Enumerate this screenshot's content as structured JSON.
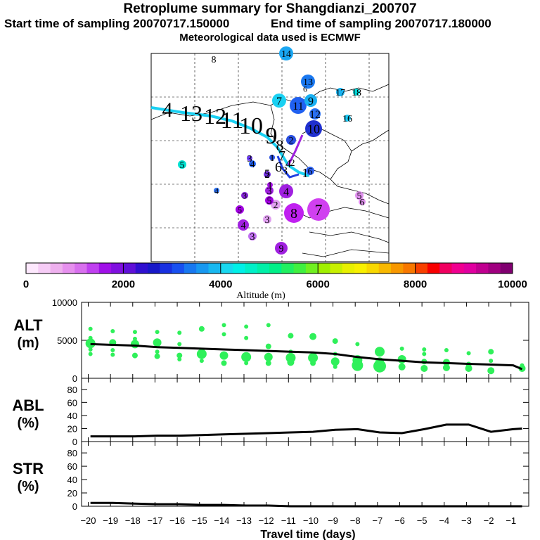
{
  "header": {
    "title": "Retroplume summary for Shangdianzi_200707",
    "start_time": "Start time of sampling 20070717.150000",
    "end_time": "End time of sampling 20070717.180000",
    "met_data": "Meteorological data used is ECMWF"
  },
  "map": {
    "plume_labels": [
      {
        "id": "p14",
        "text": "14",
        "color": "#19a6f2"
      },
      {
        "id": "p8a",
        "text": "8",
        "color": "#00e0c0"
      },
      {
        "id": "p13",
        "text": "13",
        "color": "#1a78f0"
      },
      {
        "id": "p6a",
        "text": "6",
        "color": "#00e0c0"
      },
      {
        "id": "p17",
        "text": "17",
        "color": "#19b4f2"
      },
      {
        "id": "p18",
        "text": "18",
        "color": "#00d8d8"
      },
      {
        "id": "p7a",
        "text": "7",
        "color": "#19d0f2"
      },
      {
        "id": "p11",
        "text": "11",
        "color": "#2060f0"
      },
      {
        "id": "p9a",
        "text": "9",
        "color": "#19b0f2"
      },
      {
        "id": "p12",
        "text": "12",
        "color": "#2a70f0"
      },
      {
        "id": "p16",
        "text": "16",
        "color": "#19c8f2"
      },
      {
        "id": "p10",
        "text": "10",
        "color": "#2030d0"
      },
      {
        "id": "p2a",
        "text": "2",
        "color": "#2a50e0"
      },
      {
        "id": "p5a",
        "text": "5",
        "color": "#00e0d0"
      },
      {
        "id": "p1a",
        "text": "1",
        "color": "#2a50e0"
      },
      {
        "id": "p4a",
        "text": "4",
        "color": "#2060f0"
      },
      {
        "id": "p3a",
        "text": "3",
        "color": "#6a3af0"
      },
      {
        "id": "p2b",
        "text": "2",
        "color": "#7030e0"
      },
      {
        "id": "p4b",
        "text": "4",
        "color": "#2a70f0"
      },
      {
        "id": "p3b",
        "text": "3",
        "color": "#8020d0"
      },
      {
        "id": "p5b",
        "text": "5",
        "color": "#a000e0"
      },
      {
        "id": "p6b",
        "text": "6",
        "color": "#2a60f0"
      },
      {
        "id": "p5c",
        "text": "5",
        "color": "#e090ee"
      },
      {
        "id": "p6c",
        "text": "6",
        "color": "#e090ee"
      },
      {
        "id": "p3c",
        "text": "3",
        "color": "#a020e0"
      },
      {
        "id": "p1b",
        "text": "1",
        "color": "#a010e0"
      },
      {
        "id": "p4c",
        "text": "4",
        "color": "#a020e0"
      },
      {
        "id": "p2c",
        "text": "2",
        "color": "#e0a0f0"
      },
      {
        "id": "p5d",
        "text": "5",
        "color": "#a000e0"
      },
      {
        "id": "p8b",
        "text": "8",
        "color": "#c020f0"
      },
      {
        "id": "p7b",
        "text": "7",
        "color": "#d040f0"
      },
      {
        "id": "p3d",
        "text": "3",
        "color": "#e0a0f0"
      },
      {
        "id": "p4d",
        "text": "4",
        "color": "#a020e0"
      },
      {
        "id": "p3e",
        "text": "3",
        "color": "#c070f0"
      },
      {
        "id": "p9b",
        "text": "9",
        "color": "#a020e0"
      }
    ],
    "trajectory_labels": [
      "4",
      "13",
      "12",
      "11",
      "10",
      "9",
      "8",
      "7",
      "6",
      "5",
      "4",
      "3",
      "2",
      "1"
    ]
  },
  "colorbar": {
    "tick_labels": [
      "0",
      "2000",
      "4000",
      "6000",
      "8000",
      "10000"
    ],
    "axis_label": "Altitude (m)",
    "colors": [
      "#fde8fd",
      "#f6ccf6",
      "#eeb0ee",
      "#e690ee",
      "#d870ee",
      "#c040f0",
      "#a010e8",
      "#8010e0",
      "#6010d8",
      "#3010d0",
      "#1818c8",
      "#1830e0",
      "#1850f0",
      "#1878f0",
      "#1898f0",
      "#18b8f0",
      "#18d8f0",
      "#00f0e8",
      "#00f0c8",
      "#00f0a8",
      "#00f088",
      "#20f060",
      "#40f040",
      "#70f020",
      "#a0f000",
      "#c8f000",
      "#e8f000",
      "#f8f000",
      "#f8d800",
      "#f8b800",
      "#f89800",
      "#f87800",
      "#f84000",
      "#f80000",
      "#f00060",
      "#f00090",
      "#e000a0",
      "#c00090",
      "#a00080",
      "#800070"
    ]
  },
  "chart_data": [
    {
      "type": "scatter",
      "id": "alt",
      "title": "ALT",
      "ylabel": "ALT",
      "yunit": "(m)",
      "ylim": [
        0,
        10000
      ],
      "yticks": [
        "0",
        "5000",
        "10000"
      ],
      "x": [
        -19.9,
        -18.9,
        -17.9,
        -16.9,
        -15.9,
        -14.9,
        -13.9,
        -12.9,
        -11.9,
        -10.9,
        -9.9,
        -8.9,
        -7.9,
        -6.9,
        -5.9,
        -4.9,
        -3.9,
        -2.9,
        -1.9,
        -0.9,
        -0.5
      ],
      "median_altitude": [
        4500,
        4400,
        4300,
        4100,
        4000,
        3900,
        3800,
        3700,
        3600,
        3500,
        3400,
        3200,
        2800,
        2500,
        2300,
        2100,
        2000,
        1900,
        1800,
        1700,
        1200
      ],
      "cluster_points": [
        {
          "x": -19.9,
          "y": 6500,
          "s": 3
        },
        {
          "x": -19.9,
          "y": 5300,
          "s": 3
        },
        {
          "x": -19.9,
          "y": 4600,
          "s": 7
        },
        {
          "x": -19.9,
          "y": 3800,
          "s": 3
        },
        {
          "x": -19.9,
          "y": 3200,
          "s": 3
        },
        {
          "x": -18.9,
          "y": 6200,
          "s": 3
        },
        {
          "x": -18.9,
          "y": 4700,
          "s": 5
        },
        {
          "x": -18.9,
          "y": 3100,
          "s": 3
        },
        {
          "x": -18.9,
          "y": 3700,
          "s": 3
        },
        {
          "x": -17.9,
          "y": 6100,
          "s": 3
        },
        {
          "x": -17.9,
          "y": 5200,
          "s": 3
        },
        {
          "x": -17.9,
          "y": 4500,
          "s": 6
        },
        {
          "x": -17.9,
          "y": 3000,
          "s": 4
        },
        {
          "x": -16.9,
          "y": 6100,
          "s": 3
        },
        {
          "x": -16.9,
          "y": 4700,
          "s": 6
        },
        {
          "x": -16.9,
          "y": 3500,
          "s": 3
        },
        {
          "x": -16.9,
          "y": 2900,
          "s": 4
        },
        {
          "x": -15.9,
          "y": 6000,
          "s": 3
        },
        {
          "x": -15.9,
          "y": 4500,
          "s": 3
        },
        {
          "x": -15.9,
          "y": 3000,
          "s": 4
        },
        {
          "x": -15.9,
          "y": 2500,
          "s": 3
        },
        {
          "x": -14.9,
          "y": 6500,
          "s": 4
        },
        {
          "x": -14.9,
          "y": 3200,
          "s": 7
        },
        {
          "x": -14.9,
          "y": 2300,
          "s": 3
        },
        {
          "x": -13.9,
          "y": 7000,
          "s": 3
        },
        {
          "x": -13.9,
          "y": 5800,
          "s": 3
        },
        {
          "x": -13.9,
          "y": 3000,
          "s": 6
        },
        {
          "x": -13.9,
          "y": 2000,
          "s": 4
        },
        {
          "x": -12.9,
          "y": 6800,
          "s": 3
        },
        {
          "x": -12.9,
          "y": 5300,
          "s": 3
        },
        {
          "x": -12.9,
          "y": 2800,
          "s": 7
        },
        {
          "x": -12.9,
          "y": 2000,
          "s": 3
        },
        {
          "x": -11.9,
          "y": 7000,
          "s": 3
        },
        {
          "x": -11.9,
          "y": 4200,
          "s": 4
        },
        {
          "x": -11.9,
          "y": 2800,
          "s": 6
        },
        {
          "x": -11.9,
          "y": 2000,
          "s": 4
        },
        {
          "x": -10.9,
          "y": 5600,
          "s": 4
        },
        {
          "x": -10.9,
          "y": 3500,
          "s": 3
        },
        {
          "x": -10.9,
          "y": 2700,
          "s": 7
        },
        {
          "x": -10.9,
          "y": 2100,
          "s": 5
        },
        {
          "x": -9.9,
          "y": 5500,
          "s": 5
        },
        {
          "x": -9.9,
          "y": 2700,
          "s": 7
        },
        {
          "x": -9.9,
          "y": 2000,
          "s": 4
        },
        {
          "x": -8.9,
          "y": 4900,
          "s": 4
        },
        {
          "x": -8.9,
          "y": 3200,
          "s": 3
        },
        {
          "x": -8.9,
          "y": 2200,
          "s": 6
        },
        {
          "x": -8.9,
          "y": 1500,
          "s": 3
        },
        {
          "x": -7.9,
          "y": 4500,
          "s": 3
        },
        {
          "x": -7.9,
          "y": 2400,
          "s": 7
        },
        {
          "x": -7.9,
          "y": 1700,
          "s": 8
        },
        {
          "x": -6.9,
          "y": 3500,
          "s": 7
        },
        {
          "x": -6.9,
          "y": 2200,
          "s": 6
        },
        {
          "x": -6.9,
          "y": 1600,
          "s": 9
        },
        {
          "x": -5.9,
          "y": 3900,
          "s": 3
        },
        {
          "x": -5.9,
          "y": 2500,
          "s": 6
        },
        {
          "x": -5.9,
          "y": 1500,
          "s": 5
        },
        {
          "x": -4.9,
          "y": 3800,
          "s": 3
        },
        {
          "x": -4.9,
          "y": 3200,
          "s": 3
        },
        {
          "x": -4.9,
          "y": 2200,
          "s": 4
        },
        {
          "x": -4.9,
          "y": 1300,
          "s": 5
        },
        {
          "x": -3.9,
          "y": 3700,
          "s": 3
        },
        {
          "x": -3.9,
          "y": 2100,
          "s": 5
        },
        {
          "x": -3.9,
          "y": 1400,
          "s": 5
        },
        {
          "x": -2.9,
          "y": 3300,
          "s": 3
        },
        {
          "x": -2.9,
          "y": 1800,
          "s": 4
        },
        {
          "x": -2.9,
          "y": 1300,
          "s": 5
        },
        {
          "x": -1.9,
          "y": 3500,
          "s": 4
        },
        {
          "x": -1.9,
          "y": 2300,
          "s": 3
        },
        {
          "x": -1.9,
          "y": 1000,
          "s": 5
        },
        {
          "x": -0.5,
          "y": 1300,
          "s": 5
        },
        {
          "x": -0.5,
          "y": 1700,
          "s": 3
        }
      ]
    },
    {
      "type": "line",
      "id": "abl",
      "title": "ABL",
      "ylabel": "ABL",
      "yunit": "(%)",
      "ylim": [
        0,
        90
      ],
      "yticks": [
        "0",
        "20",
        "40",
        "60",
        "80"
      ],
      "x": [
        -19.9,
        -18.9,
        -17.9,
        -16.9,
        -15.9,
        -14.9,
        -13.9,
        -12.9,
        -11.9,
        -10.9,
        -9.9,
        -8.9,
        -7.9,
        -6.9,
        -5.9,
        -4.9,
        -3.9,
        -2.9,
        -1.9,
        -0.9,
        -0.5
      ],
      "y": [
        8,
        8,
        8,
        9,
        9,
        10,
        11,
        12,
        13,
        14,
        15,
        18,
        19,
        14,
        13,
        19,
        26,
        26,
        15,
        19,
        20
      ]
    },
    {
      "type": "line",
      "id": "str",
      "title": "STR",
      "ylabel": "STR",
      "yunit": "(%)",
      "ylim": [
        0,
        90
      ],
      "yticks": [
        "0",
        "20",
        "40",
        "60",
        "80"
      ],
      "x": [
        -19.9,
        -18.9,
        -17.9,
        -16.9,
        -15.9,
        -14.9,
        -13.9,
        -12.9,
        -11.9,
        -10.9,
        -9.9,
        -8.9,
        -7.9,
        -6.9,
        -5.9,
        -4.9,
        -3.9,
        -2.9,
        -1.9,
        -0.9,
        -0.5
      ],
      "y": [
        5,
        5,
        4,
        3,
        3,
        2,
        2,
        1,
        1,
        0,
        0,
        0,
        0,
        0,
        0,
        0,
        0,
        0,
        0,
        0,
        0
      ]
    }
  ],
  "x_axis": {
    "label": "Travel time (days)",
    "ticks": [
      "−20",
      "−19",
      "−18",
      "−17",
      "−16",
      "−15",
      "−14",
      "−13",
      "−12",
      "−11",
      "−10",
      "−9",
      "−8",
      "−7",
      "−6",
      "−5",
      "−4",
      "−3",
      "−2",
      "−1"
    ]
  }
}
